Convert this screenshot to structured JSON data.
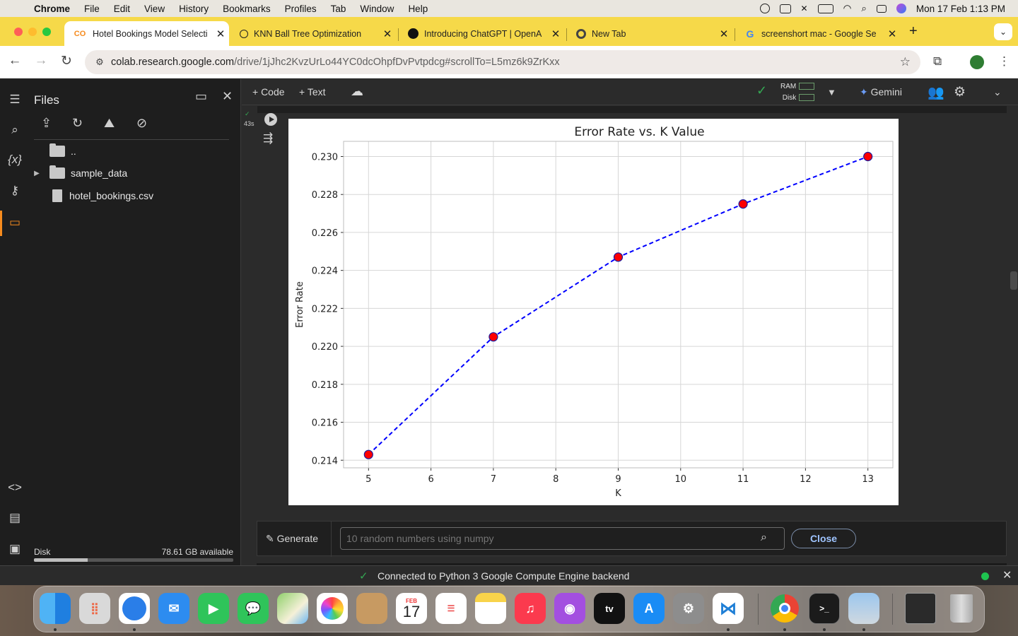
{
  "menubar": {
    "app": "Chrome",
    "items": [
      "File",
      "Edit",
      "View",
      "History",
      "Bookmarks",
      "Profiles",
      "Tab",
      "Window",
      "Help"
    ],
    "clock": "Mon 17 Feb  1:13 PM"
  },
  "tabs": [
    {
      "label": "Hotel Bookings Model Selecti",
      "favicon": "colab-icon",
      "active": true
    },
    {
      "label": "KNN Ball Tree Optimization",
      "favicon": "openai-icon",
      "active": false
    },
    {
      "label": "Introducing ChatGPT | OpenA",
      "favicon": "openai-icon",
      "active": false
    },
    {
      "label": "New Tab",
      "favicon": "chrome-icon",
      "active": false
    },
    {
      "label": "screenshort mac - Google Se",
      "favicon": "google-icon",
      "active": false
    }
  ],
  "address": {
    "host": "colab.research.google.com",
    "path": "/drive/1jJhc2KvzUrLo44YC0dcOhpfDvPvtpdcg#scrollTo=L5mz6k9ZrKxx"
  },
  "files_panel": {
    "title": "Files",
    "entries": [
      {
        "name": "..",
        "kind": "folder"
      },
      {
        "name": "sample_data",
        "kind": "folder"
      },
      {
        "name": "hotel_bookings.csv",
        "kind": "file"
      }
    ],
    "disk_label": "Disk",
    "disk_available": "78.61 GB available",
    "disk_used_fraction": 0.27
  },
  "notebook_toolbar": {
    "code_label": "+ Code",
    "text_label": "+ Text",
    "ram_label": "RAM",
    "disk_label": "Disk",
    "gemini_label": "Gemini"
  },
  "cell": {
    "exec_time": "43s"
  },
  "chart_data": {
    "type": "line",
    "title": "Error Rate vs. K Value",
    "xlabel": "K",
    "ylabel": "Error Rate",
    "x": [
      5,
      7,
      9,
      11,
      13
    ],
    "series": [
      {
        "values": [
          0.2143,
          0.2205,
          0.2247,
          0.2275,
          0.23
        ],
        "line_color": "#0000ff",
        "line_style": "dashed",
        "marker_color": "#ff0000"
      }
    ],
    "xlim": [
      4.6,
      13.4
    ],
    "ylim": [
      0.2136,
      0.2308
    ],
    "xticks": [
      "5",
      "6",
      "7",
      "8",
      "9",
      "10",
      "11",
      "12",
      "13"
    ],
    "yticks": [
      "0.214",
      "0.216",
      "0.218",
      "0.220",
      "0.222",
      "0.224",
      "0.226",
      "0.228",
      "0.230"
    ],
    "grid": true
  },
  "generate_bar": {
    "button_label": "Generate",
    "placeholder": "10 random numbers using numpy",
    "close_label": "Close"
  },
  "status": {
    "message": "Connected to Python 3 Google Compute Engine backend"
  },
  "dock": {
    "calendar_month": "FEB",
    "calendar_day": "17",
    "apps": [
      "finder-icon",
      "launchpad-icon",
      "safari-icon",
      "mail-icon",
      "facetime-icon",
      "messages-icon",
      "maps-icon",
      "photos-icon",
      "contacts-icon",
      "calendar-icon",
      "reminders-icon",
      "notes-icon",
      "music-icon",
      "podcasts-icon",
      "tv-icon",
      "app-store-icon",
      "settings-icon",
      "vscode-icon",
      "chrome-icon",
      "terminal-icon",
      "preview-icon"
    ]
  }
}
